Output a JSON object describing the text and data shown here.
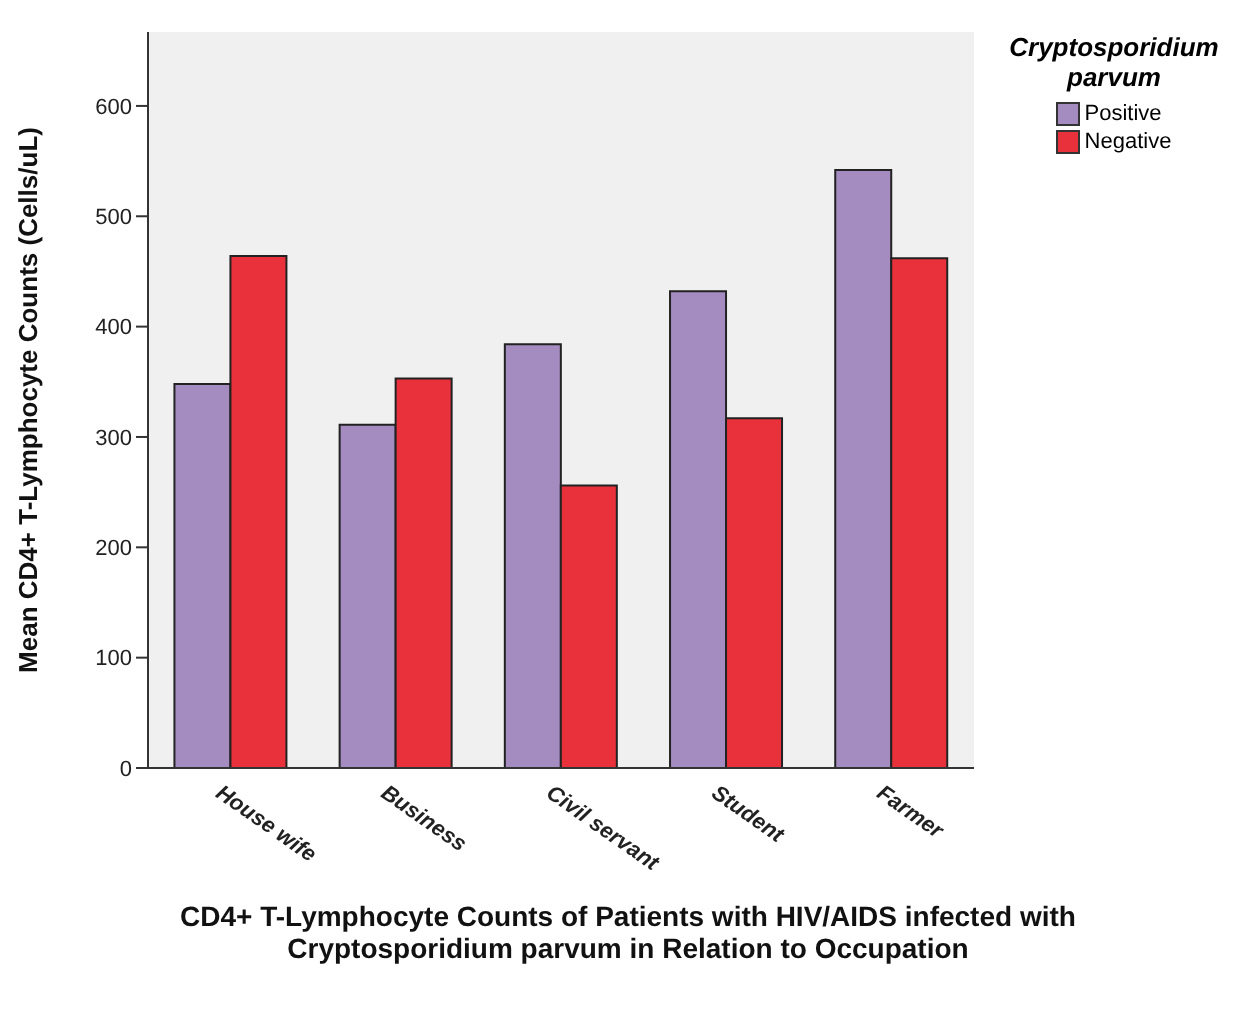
{
  "chart_data": {
    "type": "bar",
    "xlabel": "CD4+ T-Lymphocyte Counts of Patients with HIV/AIDS infected with Cryptosporidium parvum in Relation to Occupation",
    "ylabel": "Mean CD4+ T-Lymphocyte Counts (Cells/uL)",
    "legend_title": "Cryptosporidium parvum",
    "categories": [
      "House wife",
      "Business",
      "Civil servant",
      "Student",
      "Farmer"
    ],
    "series": [
      {
        "name": "Positive",
        "color": "#a58cc0",
        "values": [
          348,
          311,
          384,
          432,
          542
        ]
      },
      {
        "name": "Negative",
        "color": "#e8313a",
        "values": [
          464,
          353,
          256,
          317,
          462
        ]
      }
    ],
    "ylim": [
      0,
      667
    ],
    "yticks": [
      0,
      100,
      200,
      300,
      400,
      500,
      600
    ],
    "legend": "top right"
  }
}
